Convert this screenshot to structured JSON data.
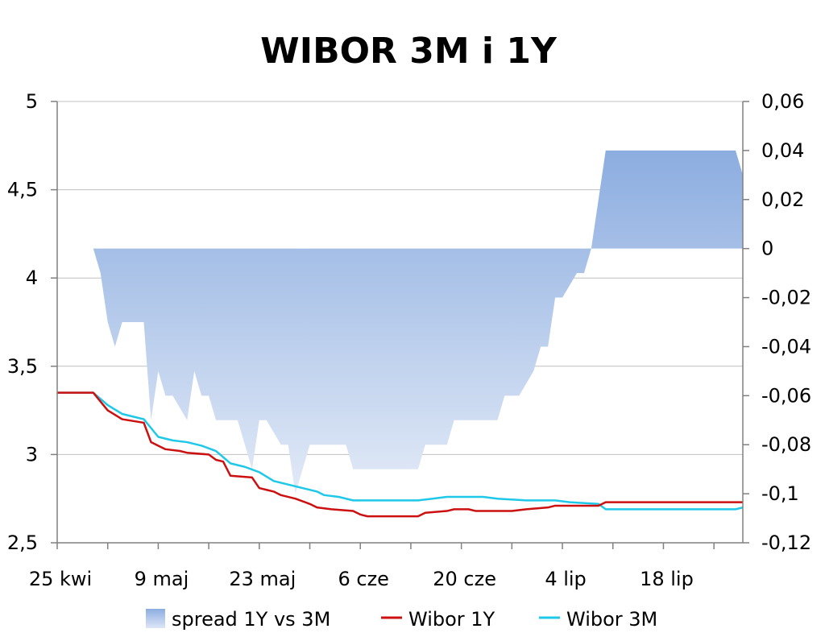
{
  "chart_data": {
    "type": "area",
    "title": "WIBOR 3M i 1Y",
    "x_start": "2011-04-25",
    "x_end": "2011-07-29",
    "x_tick_labels": [
      "25 kwi",
      "9 maj",
      "23 maj",
      "6 cze",
      "20 cze",
      "4 lip",
      "18 lip"
    ],
    "y_left": {
      "range": [
        2.5,
        5
      ],
      "ticks": [
        "2,5",
        "3",
        "3,5",
        "4",
        "4,5",
        "5"
      ]
    },
    "y_right": {
      "range": [
        -0.12,
        0.06
      ],
      "ticks": [
        "-0,12",
        "-0,1",
        "-0,08",
        "-0,06",
        "-0,04",
        "-0,02",
        "0",
        "0,02",
        "0,04",
        "0,06"
      ]
    },
    "grid": true,
    "legend_position": "bottom",
    "series": [
      {
        "name": "spread 1Y vs 3M",
        "axis": "right",
        "kind": "area",
        "color_top": "#8cade0",
        "color_bottom": "#dde6f6",
        "points": [
          [
            "2011-04-30",
            0.0
          ],
          [
            "2011-05-01",
            -0.01
          ],
          [
            "2011-05-02",
            -0.03
          ],
          [
            "2011-05-03",
            -0.04
          ],
          [
            "2011-05-04",
            -0.03
          ],
          [
            "2011-05-05",
            -0.03
          ],
          [
            "2011-05-06",
            -0.03
          ],
          [
            "2011-05-07",
            -0.03
          ],
          [
            "2011-05-08",
            -0.07
          ],
          [
            "2011-05-09",
            -0.05
          ],
          [
            "2011-05-10",
            -0.06
          ],
          [
            "2011-05-11",
            -0.06
          ],
          [
            "2011-05-12",
            -0.065
          ],
          [
            "2011-05-13",
            -0.07
          ],
          [
            "2011-05-14",
            -0.05
          ],
          [
            "2011-05-15",
            -0.06
          ],
          [
            "2011-05-16",
            -0.06
          ],
          [
            "2011-05-17",
            -0.07
          ],
          [
            "2011-05-18",
            -0.07
          ],
          [
            "2011-05-19",
            -0.07
          ],
          [
            "2011-05-20",
            -0.07
          ],
          [
            "2011-05-21",
            -0.08
          ],
          [
            "2011-05-22",
            -0.09
          ],
          [
            "2011-05-23",
            -0.07
          ],
          [
            "2011-05-24",
            -0.07
          ],
          [
            "2011-05-25",
            -0.075
          ],
          [
            "2011-05-26",
            -0.08
          ],
          [
            "2011-05-27",
            -0.08
          ],
          [
            "2011-05-28",
            -0.1
          ],
          [
            "2011-05-29",
            -0.09
          ],
          [
            "2011-05-30",
            -0.08
          ],
          [
            "2011-05-31",
            -0.08
          ],
          [
            "2011-06-01",
            -0.08
          ],
          [
            "2011-06-02",
            -0.08
          ],
          [
            "2011-06-03",
            -0.08
          ],
          [
            "2011-06-04",
            -0.08
          ],
          [
            "2011-06-05",
            -0.09
          ],
          [
            "2011-06-06",
            -0.09
          ],
          [
            "2011-06-13",
            -0.09
          ],
          [
            "2011-06-14",
            -0.09
          ],
          [
            "2011-06-15",
            -0.08
          ],
          [
            "2011-06-16",
            -0.08
          ],
          [
            "2011-06-17",
            -0.08
          ],
          [
            "2011-06-18",
            -0.08
          ],
          [
            "2011-06-19",
            -0.07
          ],
          [
            "2011-06-20",
            -0.07
          ],
          [
            "2011-06-24",
            -0.07
          ],
          [
            "2011-06-25",
            -0.07
          ],
          [
            "2011-06-26",
            -0.06
          ],
          [
            "2011-06-27",
            -0.06
          ],
          [
            "2011-06-28",
            -0.06
          ],
          [
            "2011-06-29",
            -0.055
          ],
          [
            "2011-06-30",
            -0.05
          ],
          [
            "2011-07-01",
            -0.04
          ],
          [
            "2011-07-02",
            -0.04
          ],
          [
            "2011-07-03",
            -0.02
          ],
          [
            "2011-07-04",
            -0.02
          ],
          [
            "2011-07-05",
            -0.015
          ],
          [
            "2011-07-06",
            -0.01
          ],
          [
            "2011-07-07",
            -0.01
          ],
          [
            "2011-07-08",
            0.0
          ],
          [
            "2011-07-09",
            0.02
          ],
          [
            "2011-07-10",
            0.04
          ],
          [
            "2011-07-28",
            0.04
          ],
          [
            "2011-07-29",
            0.03
          ]
        ]
      },
      {
        "name": "Wibor 1Y",
        "axis": "left",
        "kind": "line",
        "color": "#cc1010",
        "points": [
          [
            "2011-04-25",
            3.35
          ],
          [
            "2011-04-30",
            3.35
          ],
          [
            "2011-05-02",
            3.25
          ],
          [
            "2011-05-04",
            3.2
          ],
          [
            "2011-05-07",
            3.18
          ],
          [
            "2011-05-08",
            3.07
          ],
          [
            "2011-05-09",
            3.05
          ],
          [
            "2011-05-10",
            3.03
          ],
          [
            "2011-05-12",
            3.02
          ],
          [
            "2011-05-13",
            3.01
          ],
          [
            "2011-05-16",
            3.0
          ],
          [
            "2011-05-17",
            2.97
          ],
          [
            "2011-05-18",
            2.96
          ],
          [
            "2011-05-19",
            2.88
          ],
          [
            "2011-05-22",
            2.87
          ],
          [
            "2011-05-23",
            2.81
          ],
          [
            "2011-05-24",
            2.8
          ],
          [
            "2011-05-25",
            2.79
          ],
          [
            "2011-05-26",
            2.77
          ],
          [
            "2011-05-28",
            2.75
          ],
          [
            "2011-05-30",
            2.72
          ],
          [
            "2011-05-31",
            2.7
          ],
          [
            "2011-06-02",
            2.69
          ],
          [
            "2011-06-05",
            2.68
          ],
          [
            "2011-06-06",
            2.66
          ],
          [
            "2011-06-07",
            2.65
          ],
          [
            "2011-06-14",
            2.65
          ],
          [
            "2011-06-15",
            2.67
          ],
          [
            "2011-06-18",
            2.68
          ],
          [
            "2011-06-19",
            2.69
          ],
          [
            "2011-06-21",
            2.69
          ],
          [
            "2011-06-22",
            2.68
          ],
          [
            "2011-06-27",
            2.68
          ],
          [
            "2011-06-29",
            2.69
          ],
          [
            "2011-07-02",
            2.7
          ],
          [
            "2011-07-03",
            2.71
          ],
          [
            "2011-07-09",
            2.71
          ],
          [
            "2011-07-10",
            2.73
          ],
          [
            "2011-07-29",
            2.73
          ]
        ]
      },
      {
        "name": "Wibor 3M",
        "axis": "left",
        "kind": "line",
        "color": "#1ec8e8",
        "points": [
          [
            "2011-04-25",
            3.35
          ],
          [
            "2011-04-30",
            3.35
          ],
          [
            "2011-05-02",
            3.28
          ],
          [
            "2011-05-04",
            3.23
          ],
          [
            "2011-05-06",
            3.21
          ],
          [
            "2011-05-07",
            3.2
          ],
          [
            "2011-05-08",
            3.15
          ],
          [
            "2011-05-09",
            3.1
          ],
          [
            "2011-05-11",
            3.08
          ],
          [
            "2011-05-13",
            3.07
          ],
          [
            "2011-05-15",
            3.05
          ],
          [
            "2011-05-17",
            3.02
          ],
          [
            "2011-05-19",
            2.95
          ],
          [
            "2011-05-21",
            2.93
          ],
          [
            "2011-05-23",
            2.9
          ],
          [
            "2011-05-25",
            2.85
          ],
          [
            "2011-05-27",
            2.83
          ],
          [
            "2011-05-29",
            2.81
          ],
          [
            "2011-05-31",
            2.79
          ],
          [
            "2011-06-01",
            2.77
          ],
          [
            "2011-06-03",
            2.76
          ],
          [
            "2011-06-05",
            2.74
          ],
          [
            "2011-06-14",
            2.74
          ],
          [
            "2011-06-16",
            2.75
          ],
          [
            "2011-06-18",
            2.76
          ],
          [
            "2011-06-23",
            2.76
          ],
          [
            "2011-06-25",
            2.75
          ],
          [
            "2011-06-29",
            2.74
          ],
          [
            "2011-07-03",
            2.74
          ],
          [
            "2011-07-05",
            2.73
          ],
          [
            "2011-07-09",
            2.72
          ],
          [
            "2011-07-10",
            2.69
          ],
          [
            "2011-07-28",
            2.69
          ],
          [
            "2011-07-29",
            2.7
          ]
        ]
      }
    ]
  }
}
